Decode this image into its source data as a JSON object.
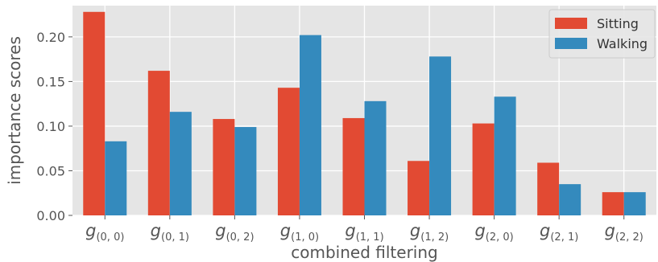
{
  "chart_data": {
    "type": "bar",
    "title": "",
    "xlabel": "combined filtering",
    "ylabel": "importance scores",
    "ylim": [
      0,
      0.235
    ],
    "yticks": [
      0.0,
      0.05,
      0.1,
      0.15,
      0.2
    ],
    "ytick_labels": [
      "0.00",
      "0.05",
      "0.10",
      "0.15",
      "0.20"
    ],
    "grid": true,
    "legend_position": "top-right",
    "categories": [
      {
        "base": "g",
        "sub": "(0, 0)"
      },
      {
        "base": "g",
        "sub": "(0, 1)"
      },
      {
        "base": "g",
        "sub": "(0, 2)"
      },
      {
        "base": "g",
        "sub": "(1, 0)"
      },
      {
        "base": "g",
        "sub": "(1, 1)"
      },
      {
        "base": "g",
        "sub": "(1, 2)"
      },
      {
        "base": "g",
        "sub": "(2, 0)"
      },
      {
        "base": "g",
        "sub": "(2, 1)"
      },
      {
        "base": "g",
        "sub": "(2, 2)"
      }
    ],
    "series": [
      {
        "name": "Sitting",
        "color": "#E24A33",
        "values": [
          0.228,
          0.162,
          0.108,
          0.143,
          0.109,
          0.061,
          0.103,
          0.059,
          0.026
        ]
      },
      {
        "name": "Walking",
        "color": "#348ABD",
        "values": [
          0.083,
          0.116,
          0.099,
          0.202,
          0.128,
          0.178,
          0.133,
          0.035,
          0.026
        ]
      }
    ],
    "style": {
      "plot_background": "#E5E5E5",
      "grid_color": "#FFFFFF",
      "tick_color": "#555555"
    }
  }
}
